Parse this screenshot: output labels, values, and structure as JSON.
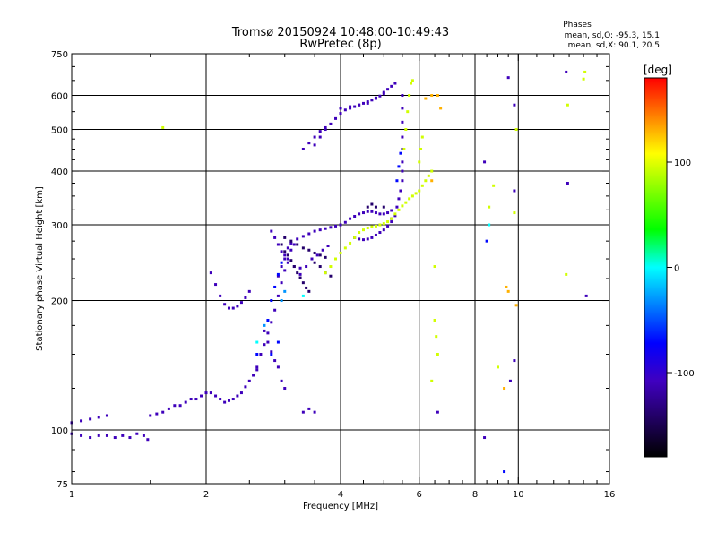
{
  "chart_data": {
    "type": "scatter",
    "title": "Tromsø 20150924 10:48:00-10:49:43",
    "subtitle": "RwPretec (8p)",
    "xlabel": "Frequency [MHz]",
    "ylabel": "Stationary phase Virtual Height [km]",
    "x_scale": "log2",
    "y_scale": "log",
    "xlim": [
      1,
      16
    ],
    "ylim": [
      75,
      750
    ],
    "x_ticks": [
      1,
      2,
      4,
      6,
      8,
      10,
      16
    ],
    "x_tick_labels": [
      "1",
      "2",
      "4",
      "6",
      "8",
      "10",
      "16"
    ],
    "x_grid": [
      2,
      4,
      6,
      8,
      10
    ],
    "y_ticks": [
      75,
      100,
      200,
      300,
      400,
      500,
      600,
      750
    ],
    "y_tick_labels": [
      "75",
      "100",
      "200",
      "300",
      "400",
      "500",
      "600",
      "750"
    ],
    "y_grid": [
      100,
      200,
      300,
      400,
      500,
      600
    ],
    "grid": true,
    "phase_box": {
      "title": "Phases",
      "line_o": "mean, sd,O: -95.3, 15.1",
      "line_x": "mean, sd,X: 90.1, 20.5"
    },
    "colorbar": {
      "label": "[deg]",
      "range": [
        -180,
        180
      ],
      "ticks": [
        100,
        0,
        -100
      ],
      "tick_labels": [
        "100",
        "0",
        "-100"
      ],
      "colors": [
        "#ff0000",
        "#ff8000",
        "#ffff00",
        "#80ff00",
        "#00ff00",
        "#00ffff",
        "#0080ff",
        "#0000ff",
        "#4000c0",
        "#200060",
        "#000000"
      ]
    },
    "series": [
      {
        "phase": -110,
        "points": [
          [
            1.0,
            104
          ],
          [
            1.05,
            105
          ],
          [
            1.1,
            106
          ],
          [
            1.15,
            107
          ],
          [
            1.2,
            108
          ],
          [
            1.0,
            98
          ],
          [
            1.05,
            97
          ],
          [
            1.1,
            96
          ],
          [
            1.15,
            97
          ],
          [
            1.2,
            97
          ],
          [
            1.25,
            96
          ],
          [
            1.3,
            97
          ],
          [
            1.35,
            96
          ],
          [
            1.4,
            98
          ],
          [
            1.45,
            97
          ],
          [
            1.48,
            95
          ],
          [
            1.5,
            108
          ],
          [
            1.55,
            109
          ],
          [
            1.6,
            110
          ],
          [
            1.65,
            112
          ],
          [
            1.7,
            114
          ],
          [
            1.75,
            114
          ],
          [
            1.8,
            116
          ],
          [
            1.85,
            118
          ],
          [
            1.9,
            118
          ],
          [
            1.95,
            120
          ],
          [
            2.0,
            122
          ],
          [
            2.05,
            122
          ],
          [
            2.1,
            120
          ],
          [
            2.15,
            118
          ],
          [
            2.2,
            116
          ],
          [
            2.25,
            117
          ],
          [
            2.3,
            118
          ],
          [
            2.35,
            120
          ],
          [
            2.4,
            122
          ],
          [
            2.45,
            126
          ],
          [
            2.5,
            130
          ],
          [
            2.55,
            134
          ],
          [
            2.6,
            138
          ],
          [
            2.05,
            232
          ],
          [
            2.1,
            218
          ],
          [
            2.15,
            205
          ],
          [
            2.2,
            196
          ],
          [
            2.25,
            192
          ],
          [
            2.3,
            192
          ],
          [
            2.35,
            194
          ],
          [
            2.4,
            198
          ],
          [
            2.45,
            203
          ],
          [
            2.5,
            210
          ],
          [
            2.6,
            140
          ],
          [
            2.65,
            150
          ],
          [
            2.7,
            158
          ],
          [
            2.75,
            168
          ],
          [
            2.8,
            178
          ],
          [
            2.85,
            190
          ],
          [
            2.9,
            205
          ],
          [
            2.95,
            220
          ],
          [
            3.0,
            235
          ],
          [
            3.05,
            250
          ],
          [
            3.1,
            262
          ],
          [
            3.15,
            270
          ],
          [
            2.9,
            228
          ],
          [
            2.95,
            240
          ],
          [
            3.0,
            255
          ],
          [
            3.05,
            265
          ],
          [
            3.1,
            272
          ],
          [
            3.2,
            278
          ],
          [
            3.3,
            282
          ],
          [
            3.4,
            286
          ],
          [
            3.5,
            290
          ],
          [
            3.6,
            292
          ],
          [
            3.7,
            294
          ],
          [
            3.8,
            296
          ],
          [
            3.9,
            298
          ],
          [
            4.0,
            300
          ],
          [
            4.1,
            304
          ],
          [
            4.2,
            310
          ],
          [
            4.3,
            314
          ],
          [
            4.4,
            318
          ],
          [
            4.5,
            320
          ],
          [
            4.6,
            322
          ],
          [
            4.7,
            322
          ],
          [
            4.8,
            320
          ],
          [
            4.9,
            318
          ],
          [
            5.0,
            318
          ],
          [
            5.1,
            320
          ],
          [
            5.2,
            324
          ],
          [
            3.5,
            460
          ],
          [
            3.6,
            480
          ],
          [
            3.7,
            500
          ],
          [
            3.8,
            515
          ],
          [
            3.9,
            530
          ],
          [
            4.0,
            545
          ],
          [
            4.1,
            555
          ],
          [
            4.2,
            560
          ],
          [
            4.3,
            565
          ],
          [
            4.4,
            570
          ],
          [
            4.5,
            575
          ],
          [
            4.6,
            580
          ],
          [
            4.7,
            585
          ],
          [
            4.8,
            592
          ],
          [
            4.9,
            598
          ],
          [
            5.0,
            605
          ],
          [
            3.3,
            450
          ],
          [
            3.4,
            465
          ],
          [
            3.5,
            480
          ],
          [
            3.6,
            495
          ],
          [
            3.7,
            505
          ],
          [
            4.0,
            560
          ],
          [
            4.2,
            565
          ],
          [
            4.4,
            570
          ],
          [
            4.6,
            575
          ],
          [
            4.8,
            590
          ],
          [
            5.0,
            610
          ],
          [
            5.1,
            620
          ],
          [
            5.2,
            630
          ],
          [
            5.3,
            640
          ],
          [
            4.3,
            280
          ],
          [
            4.4,
            278
          ],
          [
            4.5,
            277
          ],
          [
            4.6,
            278
          ],
          [
            4.7,
            280
          ],
          [
            4.8,
            284
          ],
          [
            4.9,
            288
          ],
          [
            5.0,
            292
          ],
          [
            5.1,
            298
          ],
          [
            5.2,
            305
          ],
          [
            5.3,
            315
          ],
          [
            5.35,
            330
          ],
          [
            5.4,
            345
          ],
          [
            5.45,
            360
          ],
          [
            5.5,
            380
          ],
          [
            5.5,
            400
          ],
          [
            5.5,
            420
          ],
          [
            5.5,
            450
          ],
          [
            5.5,
            480
          ],
          [
            5.5,
            520
          ],
          [
            5.5,
            560
          ],
          [
            5.5,
            600
          ],
          [
            2.8,
            290
          ],
          [
            2.85,
            280
          ],
          [
            2.9,
            270
          ],
          [
            2.95,
            260
          ],
          [
            3.0,
            250
          ],
          [
            3.05,
            245
          ],
          [
            3.15,
            240
          ],
          [
            3.25,
            238
          ],
          [
            2.7,
            170
          ],
          [
            2.75,
            160
          ],
          [
            2.8,
            152
          ],
          [
            2.85,
            145
          ],
          [
            2.9,
            140
          ],
          [
            2.95,
            130
          ],
          [
            3.0,
            125
          ],
          [
            3.3,
            110
          ],
          [
            3.4,
            112
          ],
          [
            3.5,
            110
          ],
          [
            3.25,
            230
          ],
          [
            3.35,
            240
          ],
          [
            3.45,
            250
          ],
          [
            3.55,
            255
          ],
          [
            3.65,
            262
          ],
          [
            3.75,
            268
          ],
          [
            8.4,
            420
          ],
          [
            9.5,
            660
          ],
          [
            9.8,
            570
          ],
          [
            9.8,
            360
          ],
          [
            9.6,
            130
          ],
          [
            8.4,
            96
          ],
          [
            6.6,
            110
          ],
          [
            9.8,
            145
          ],
          [
            12.8,
            680
          ],
          [
            12.9,
            375
          ],
          [
            14.2,
            205
          ]
        ]
      },
      {
        "phase": -140,
        "points": [
          [
            2.95,
            270
          ],
          [
            3.0,
            260
          ],
          [
            3.05,
            255
          ],
          [
            3.1,
            248
          ],
          [
            3.15,
            240
          ],
          [
            3.2,
            232
          ],
          [
            3.25,
            226
          ],
          [
            3.3,
            220
          ],
          [
            3.35,
            214
          ],
          [
            3.4,
            210
          ],
          [
            3.0,
            280
          ],
          [
            3.1,
            275
          ],
          [
            3.2,
            270
          ],
          [
            3.3,
            265
          ],
          [
            3.4,
            262
          ],
          [
            3.5,
            258
          ],
          [
            3.6,
            255
          ],
          [
            3.7,
            252
          ],
          [
            3.5,
            245
          ],
          [
            3.6,
            240
          ],
          [
            3.7,
            232
          ],
          [
            3.8,
            228
          ],
          [
            4.6,
            330
          ],
          [
            4.7,
            335
          ],
          [
            4.8,
            330
          ],
          [
            5.0,
            330
          ],
          [
            5.2,
            310
          ]
        ]
      },
      {
        "phase": -70,
        "points": [
          [
            2.75,
            180
          ],
          [
            2.8,
            200
          ],
          [
            2.85,
            215
          ],
          [
            2.9,
            230
          ],
          [
            2.95,
            245
          ],
          [
            2.8,
            150
          ],
          [
            2.9,
            160
          ],
          [
            2.6,
            150
          ],
          [
            5.35,
            380
          ],
          [
            5.4,
            410
          ],
          [
            5.45,
            440
          ],
          [
            9.3,
            80
          ],
          [
            8.5,
            275
          ]
        ]
      },
      {
        "phase": 95,
        "points": [
          [
            3.7,
            232
          ],
          [
            3.8,
            240
          ],
          [
            3.9,
            250
          ],
          [
            4.0,
            258
          ],
          [
            4.1,
            265
          ],
          [
            4.2,
            272
          ],
          [
            4.3,
            280
          ],
          [
            4.4,
            288
          ],
          [
            4.5,
            292
          ],
          [
            4.6,
            295
          ],
          [
            4.7,
            297
          ],
          [
            4.8,
            298
          ],
          [
            4.9,
            300
          ],
          [
            5.0,
            302
          ],
          [
            5.1,
            305
          ],
          [
            5.2,
            310
          ],
          [
            5.3,
            318
          ],
          [
            5.4,
            325
          ],
          [
            5.5,
            332
          ],
          [
            5.6,
            338
          ],
          [
            5.7,
            345
          ],
          [
            5.8,
            350
          ],
          [
            5.9,
            355
          ],
          [
            6.0,
            360
          ],
          [
            6.1,
            370
          ],
          [
            6.2,
            380
          ],
          [
            6.3,
            390
          ],
          [
            6.4,
            400
          ],
          [
            5.55,
            450
          ],
          [
            5.6,
            500
          ],
          [
            5.65,
            550
          ],
          [
            5.7,
            600
          ],
          [
            5.75,
            640
          ],
          [
            5.8,
            650
          ],
          [
            6.0,
            420
          ],
          [
            6.05,
            450
          ],
          [
            6.1,
            480
          ],
          [
            6.5,
            240
          ],
          [
            6.5,
            180
          ],
          [
            6.55,
            165
          ],
          [
            6.6,
            150
          ],
          [
            6.4,
            130
          ],
          [
            8.6,
            330
          ],
          [
            8.8,
            370
          ],
          [
            9.0,
            140
          ],
          [
            9.8,
            320
          ],
          [
            9.9,
            500
          ],
          [
            12.9,
            570
          ],
          [
            12.8,
            230
          ],
          [
            14.0,
            655
          ],
          [
            14.1,
            680
          ],
          [
            1.6,
            505
          ]
        ]
      },
      {
        "phase": 130,
        "points": [
          [
            6.2,
            590
          ],
          [
            6.4,
            600
          ],
          [
            6.6,
            600
          ],
          [
            6.7,
            560
          ],
          [
            6.4,
            380
          ],
          [
            9.4,
            215
          ],
          [
            9.5,
            210
          ],
          [
            9.3,
            125
          ],
          [
            9.9,
            195
          ]
        ]
      },
      {
        "phase": 0,
        "points": [
          [
            3.3,
            205
          ],
          [
            8.6,
            300
          ],
          [
            2.6,
            160
          ]
        ]
      },
      {
        "phase": -30,
        "points": [
          [
            2.95,
            200
          ],
          [
            3.0,
            210
          ],
          [
            2.7,
            175
          ]
        ]
      }
    ]
  }
}
